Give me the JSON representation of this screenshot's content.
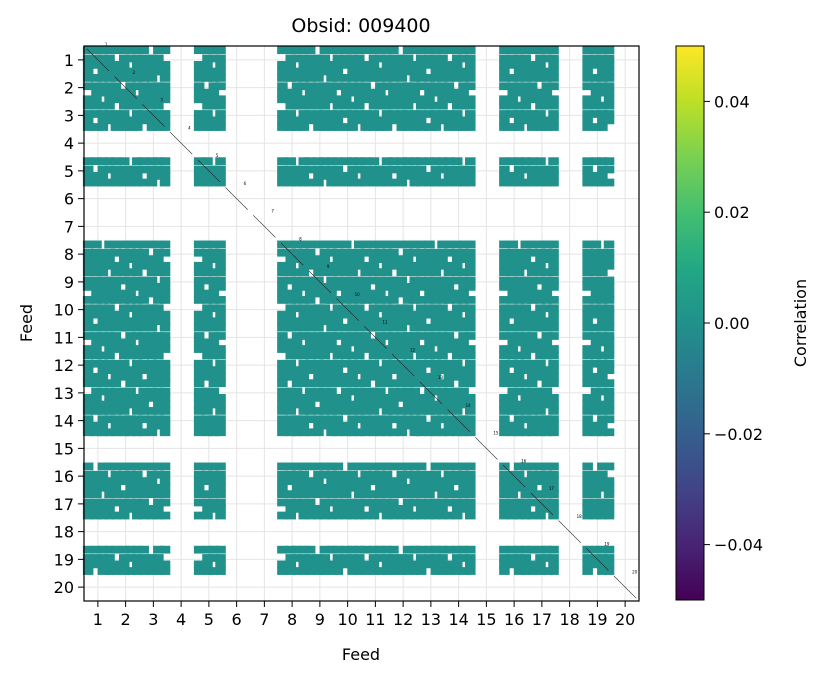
{
  "chart_data": {
    "type": "heatmap",
    "title": "Obsid: 009400",
    "xlabel": "Feed",
    "ylabel": "Feed",
    "x_ticks": [
      "1",
      "2",
      "3",
      "4",
      "5",
      "6",
      "7",
      "8",
      "9",
      "10",
      "11",
      "12",
      "13",
      "14",
      "15",
      "16",
      "17",
      "18",
      "19",
      "20"
    ],
    "y_ticks": [
      "1",
      "2",
      "3",
      "4",
      "5",
      "6",
      "7",
      "8",
      "9",
      "10",
      "11",
      "12",
      "13",
      "14",
      "15",
      "16",
      "17",
      "18",
      "19",
      "20"
    ],
    "feed_range": [
      0.5,
      20.5
    ],
    "grid": true,
    "colorbar": {
      "label": "Correlation",
      "vmin": -0.05,
      "vmax": 0.05,
      "ticks": [
        -0.04,
        -0.02,
        0.0,
        0.02,
        0.04
      ],
      "tick_labels": [
        "−0.04",
        "−0.02",
        "0.00",
        "0.02",
        "0.04"
      ],
      "colormap": "viridis"
    },
    "cell_value": 0.0,
    "cell_color": "#21918c",
    "active_feeds": [
      1,
      2,
      3,
      5,
      8,
      9,
      10,
      11,
      12,
      13,
      14,
      16,
      17,
      19
    ],
    "block_pattern": [
      0.15,
      0.45,
      0.68,
      0.92
    ],
    "feed_annotations": [
      "1",
      "2",
      "3",
      "4",
      "5",
      "6",
      "7",
      "8",
      "9",
      "10",
      "11",
      "12",
      "13",
      "14",
      "15",
      "16",
      "17",
      "18",
      "19",
      "20"
    ]
  }
}
